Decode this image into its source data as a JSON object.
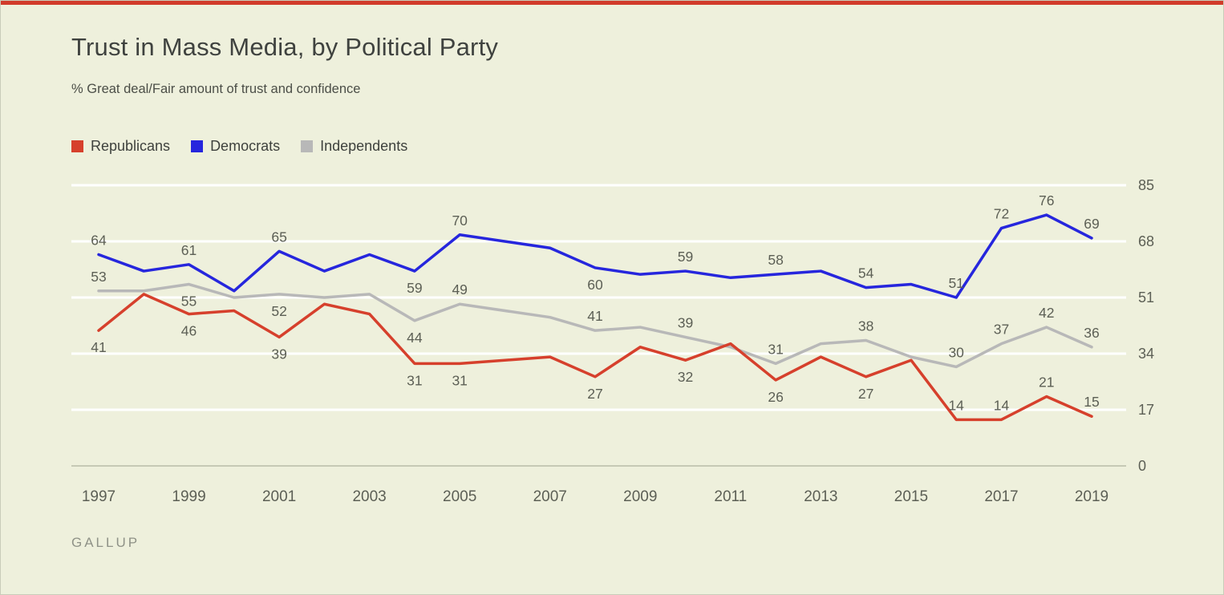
{
  "page": {
    "background_color": "#eef0dc",
    "accent_bar_color": "#d13b2a",
    "border_color": "#c9ccba"
  },
  "header": {
    "title": "Trust in Mass Media, by Political Party",
    "subtitle": "% Great deal/Fair amount of trust and confidence"
  },
  "footer": {
    "source": "GALLUP"
  },
  "chart_data": {
    "type": "line",
    "title": "Trust in Mass Media, by Political Party",
    "subtitle": "% Great deal/Fair amount of trust and confidence",
    "legend_position": "top-left",
    "grid": "horizontal-white-lines",
    "ylim": [
      0,
      85
    ],
    "yticks": [
      0,
      17,
      34,
      51,
      68,
      85
    ],
    "xticks": [
      1997,
      1999,
      2001,
      2003,
      2005,
      2007,
      2009,
      2011,
      2013,
      2015,
      2017,
      2019
    ],
    "x": [
      1997,
      1998,
      1999,
      2000,
      2001,
      2002,
      2003,
      2004,
      2005,
      2007,
      2008,
      2009,
      2010,
      2011,
      2012,
      2013,
      2014,
      2015,
      2016,
      2017,
      2018,
      2019
    ],
    "axis_text_color": "#5c5f55",
    "label_text_color": "#5c5f55",
    "zero_line_color": "#c6c9b5",
    "gridline_color": "#ffffff",
    "series": [
      {
        "name": "Republicans",
        "color": "#d6402c",
        "values": [
          41,
          52,
          46,
          47,
          39,
          49,
          46,
          31,
          31,
          33,
          27,
          36,
          32,
          37,
          26,
          33,
          27,
          32,
          14,
          14,
          21,
          15
        ],
        "point_labels": [
          {
            "year": 1997,
            "value": 41,
            "pos": "below"
          },
          {
            "year": 1999,
            "value": 46,
            "pos": "below"
          },
          {
            "year": 2001,
            "value": 39,
            "pos": "below"
          },
          {
            "year": 2004,
            "value": 31,
            "pos": "below"
          },
          {
            "year": 2005,
            "value": 31,
            "pos": "below"
          },
          {
            "year": 2008,
            "value": 27,
            "pos": "below"
          },
          {
            "year": 2010,
            "value": 32,
            "pos": "below"
          },
          {
            "year": 2012,
            "value": 26,
            "pos": "below"
          },
          {
            "year": 2014,
            "value": 27,
            "pos": "below"
          },
          {
            "year": 2016,
            "value": 14,
            "pos": "above"
          },
          {
            "year": 2017,
            "value": 14,
            "pos": "above"
          },
          {
            "year": 2018,
            "value": 21,
            "pos": "above"
          },
          {
            "year": 2019,
            "value": 15,
            "pos": "above"
          }
        ]
      },
      {
        "name": "Democrats",
        "color": "#2626dd",
        "values": [
          64,
          59,
          61,
          53,
          65,
          59,
          64,
          59,
          70,
          66,
          60,
          58,
          59,
          57,
          58,
          59,
          54,
          55,
          51,
          72,
          76,
          69
        ],
        "point_labels": [
          {
            "year": 1997,
            "value": 64,
            "pos": "above"
          },
          {
            "year": 1999,
            "value": 61,
            "pos": "above"
          },
          {
            "year": 2001,
            "value": 65,
            "pos": "above"
          },
          {
            "year": 2004,
            "value": 59,
            "pos": "below"
          },
          {
            "year": 2005,
            "value": 70,
            "pos": "above"
          },
          {
            "year": 2008,
            "value": 60,
            "pos": "below"
          },
          {
            "year": 2010,
            "value": 59,
            "pos": "above"
          },
          {
            "year": 2012,
            "value": 58,
            "pos": "above"
          },
          {
            "year": 2014,
            "value": 54,
            "pos": "above"
          },
          {
            "year": 2016,
            "value": 51,
            "pos": "above"
          },
          {
            "year": 2017,
            "value": 72,
            "pos": "above"
          },
          {
            "year": 2018,
            "value": 76,
            "pos": "above"
          },
          {
            "year": 2019,
            "value": 69,
            "pos": "above"
          }
        ]
      },
      {
        "name": "Independents",
        "color": "#b8b8b8",
        "values": [
          53,
          53,
          55,
          51,
          52,
          51,
          52,
          44,
          49,
          45,
          41,
          42,
          39,
          36,
          31,
          37,
          38,
          33,
          30,
          37,
          42,
          36
        ],
        "point_labels": [
          {
            "year": 1997,
            "value": 53,
            "pos": "above"
          },
          {
            "year": 1999,
            "value": 55,
            "pos": "below"
          },
          {
            "year": 2001,
            "value": 52,
            "pos": "below"
          },
          {
            "year": 2004,
            "value": 44,
            "pos": "below"
          },
          {
            "year": 2005,
            "value": 49,
            "pos": "above"
          },
          {
            "year": 2008,
            "value": 41,
            "pos": "above"
          },
          {
            "year": 2010,
            "value": 39,
            "pos": "above"
          },
          {
            "year": 2012,
            "value": 31,
            "pos": "above"
          },
          {
            "year": 2014,
            "value": 38,
            "pos": "above"
          },
          {
            "year": 2016,
            "value": 30,
            "pos": "above"
          },
          {
            "year": 2017,
            "value": 37,
            "pos": "above"
          },
          {
            "year": 2018,
            "value": 42,
            "pos": "above"
          },
          {
            "year": 2019,
            "value": 36,
            "pos": "above"
          }
        ]
      }
    ],
    "source": "GALLUP"
  }
}
